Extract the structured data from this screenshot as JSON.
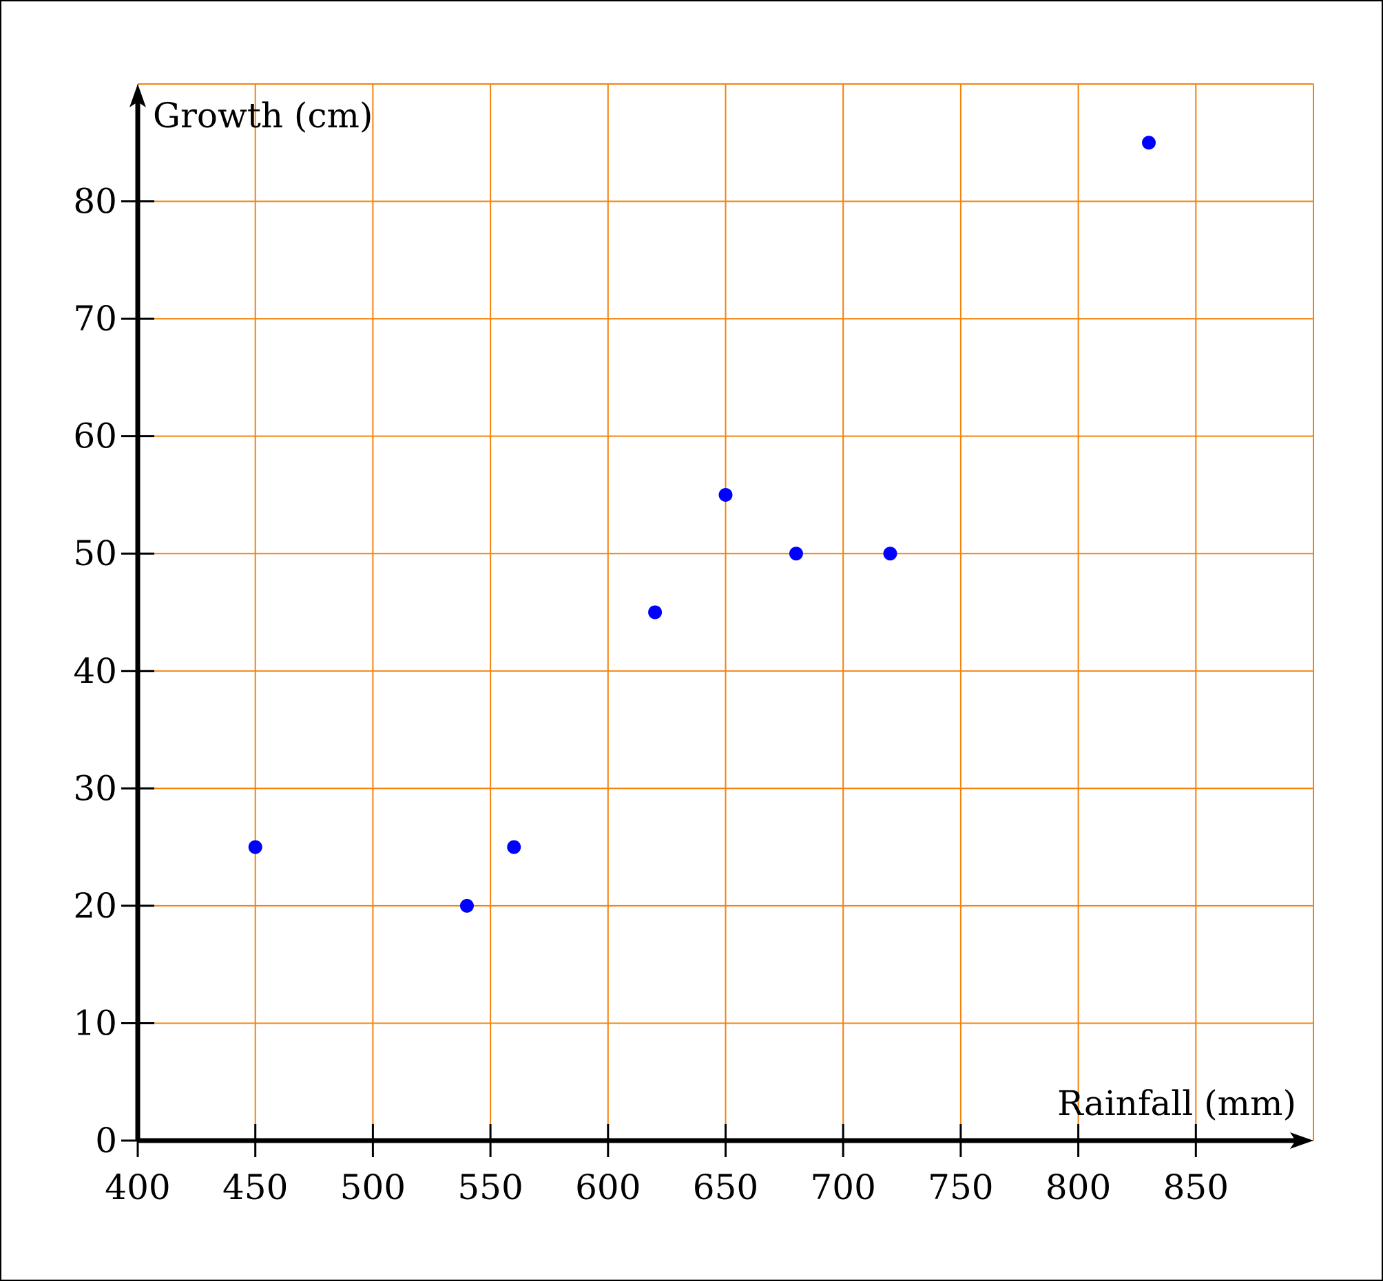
{
  "chart_data": {
    "type": "scatter",
    "title": "",
    "xlabel": "Rainfall (mm)",
    "ylabel": "Growth (cm)",
    "xlim": [
      400,
      900
    ],
    "ylim": [
      0,
      90
    ],
    "x_ticks": [
      400,
      450,
      500,
      550,
      600,
      650,
      700,
      750,
      800,
      850
    ],
    "y_ticks": [
      0,
      10,
      20,
      30,
      40,
      50,
      60,
      70,
      80
    ],
    "grid": true,
    "grid_color": "#f5820a",
    "axis_color": "#000000",
    "point_color": "#0000ff",
    "points": [
      {
        "x": 450,
        "y": 25
      },
      {
        "x": 540,
        "y": 20
      },
      {
        "x": 560,
        "y": 25
      },
      {
        "x": 620,
        "y": 45
      },
      {
        "x": 650,
        "y": 55
      },
      {
        "x": 680,
        "y": 50
      },
      {
        "x": 720,
        "y": 50
      },
      {
        "x": 830,
        "y": 85
      }
    ]
  }
}
